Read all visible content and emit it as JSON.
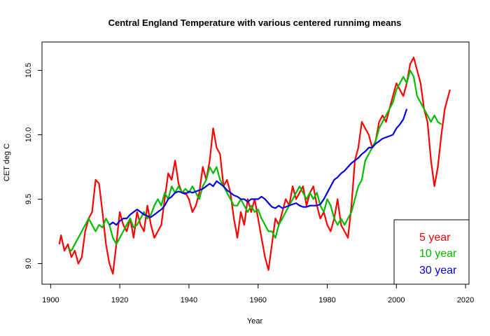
{
  "chart_data": {
    "type": "line",
    "title": "Central England Temperature with various centered runnimg means",
    "xlabel": "Year",
    "ylabel": "CET deg C",
    "xlim": [
      1897.5,
      2021
    ],
    "ylim": [
      8.84,
      10.72
    ],
    "x_ticks": [
      1900,
      1920,
      1940,
      1960,
      1980,
      2000,
      2020
    ],
    "y_ticks": [
      9.0,
      9.5,
      10.0,
      10.5
    ],
    "x_tick_labels": [
      "1900",
      "1920",
      "1940",
      "1960",
      "1980",
      "2000",
      "2020"
    ],
    "y_tick_labels": [
      "9.0",
      "9.5",
      "10.0",
      "10.5"
    ],
    "legend_position": "bottom-right",
    "series": [
      {
        "name": "5 year",
        "color": "#ff0000",
        "x": [
          1902.5,
          1903,
          1904,
          1905,
          1906,
          1907,
          1908,
          1909,
          1910,
          1911,
          1912,
          1913,
          1914,
          1915,
          1916,
          1917,
          1918,
          1919,
          1920,
          1921,
          1922,
          1923,
          1924,
          1925,
          1926,
          1927,
          1928,
          1929,
          1930,
          1931,
          1932,
          1933,
          1934,
          1935,
          1936,
          1937,
          1938,
          1939,
          1940,
          1941,
          1942,
          1943,
          1944,
          1945,
          1946,
          1947,
          1948,
          1949,
          1950,
          1951,
          1952,
          1953,
          1954,
          1955,
          1956,
          1957,
          1958,
          1959,
          1960,
          1961,
          1962,
          1963,
          1964,
          1965,
          1966,
          1967,
          1968,
          1969,
          1970,
          1971,
          1972,
          1973,
          1974,
          1975,
          1976,
          1977,
          1978,
          1979,
          1980,
          1981,
          1982,
          1983,
          1984,
          1985,
          1986,
          1987,
          1988,
          1989,
          1990,
          1991,
          1992,
          1993,
          1994,
          1995,
          1996,
          1997,
          1998,
          1999,
          2000,
          2001,
          2002,
          2003,
          2004,
          2005,
          2006,
          2007,
          2008,
          2009,
          2010,
          2011,
          2012,
          2013,
          2014,
          2015.5
        ],
        "values": [
          9.15,
          9.22,
          9.1,
          9.15,
          9.05,
          9.1,
          9.0,
          9.05,
          9.25,
          9.35,
          9.4,
          9.65,
          9.62,
          9.4,
          9.15,
          9.0,
          8.92,
          9.15,
          9.4,
          9.3,
          9.25,
          9.35,
          9.2,
          9.4,
          9.3,
          9.25,
          9.45,
          9.3,
          9.2,
          9.25,
          9.3,
          9.5,
          9.7,
          9.65,
          9.8,
          9.62,
          9.55,
          9.55,
          9.5,
          9.4,
          9.45,
          9.55,
          9.75,
          9.65,
          9.8,
          10.05,
          9.9,
          9.85,
          9.6,
          9.65,
          9.55,
          9.35,
          9.2,
          9.4,
          9.3,
          9.5,
          9.4,
          9.5,
          9.35,
          9.2,
          9.05,
          8.95,
          9.15,
          9.35,
          9.3,
          9.4,
          9.5,
          9.45,
          9.6,
          9.5,
          9.55,
          9.6,
          9.45,
          9.55,
          9.6,
          9.45,
          9.35,
          9.4,
          9.3,
          9.25,
          9.35,
          9.5,
          9.3,
          9.25,
          9.2,
          9.45,
          9.8,
          9.9,
          10.1,
          10.05,
          10.0,
          9.9,
          9.95,
          10.1,
          10.15,
          10.1,
          10.2,
          10.3,
          10.4,
          10.35,
          10.3,
          10.4,
          10.55,
          10.6,
          10.5,
          10.4,
          10.2,
          10.1,
          9.8,
          9.6,
          9.75,
          10.0,
          10.2,
          10.35
        ]
      },
      {
        "name": "10 year",
        "color": "#00bb00",
        "x": [
          1905,
          1906,
          1907,
          1908,
          1909,
          1910,
          1911,
          1912,
          1913,
          1914,
          1915,
          1916,
          1917,
          1918,
          1919,
          1920,
          1921,
          1922,
          1923,
          1924,
          1925,
          1926,
          1927,
          1928,
          1929,
          1930,
          1931,
          1932,
          1933,
          1934,
          1935,
          1936,
          1937,
          1938,
          1939,
          1940,
          1941,
          1942,
          1943,
          1944,
          1945,
          1946,
          1947,
          1948,
          1949,
          1950,
          1951,
          1952,
          1953,
          1954,
          1955,
          1956,
          1957,
          1958,
          1959,
          1960,
          1961,
          1962,
          1963,
          1964,
          1965,
          1966,
          1967,
          1968,
          1969,
          1970,
          1971,
          1972,
          1973,
          1974,
          1975,
          1976,
          1977,
          1978,
          1979,
          1980,
          1981,
          1982,
          1983,
          1984,
          1985,
          1986,
          1987,
          1988,
          1989,
          1990,
          1991,
          1992,
          1993,
          1994,
          1995,
          1996,
          1997,
          1998,
          1999,
          2000,
          2001,
          2002,
          2003,
          2004,
          2005,
          2006,
          2007,
          2008,
          2009,
          2010,
          2011,
          2012,
          2013
        ],
        "values": [
          9.12,
          9.1,
          9.15,
          9.2,
          9.25,
          9.3,
          9.35,
          9.3,
          9.25,
          9.3,
          9.28,
          9.35,
          9.3,
          9.2,
          9.15,
          9.2,
          9.25,
          9.3,
          9.35,
          9.28,
          9.3,
          9.35,
          9.4,
          9.35,
          9.38,
          9.45,
          9.5,
          9.45,
          9.55,
          9.5,
          9.6,
          9.55,
          9.6,
          9.55,
          9.58,
          9.55,
          9.6,
          9.55,
          9.5,
          9.6,
          9.65,
          9.75,
          9.7,
          9.75,
          9.65,
          9.6,
          9.55,
          9.5,
          9.45,
          9.45,
          9.5,
          9.45,
          9.4,
          9.45,
          9.4,
          9.42,
          9.35,
          9.3,
          9.25,
          9.25,
          9.2,
          9.3,
          9.35,
          9.4,
          9.45,
          9.5,
          9.55,
          9.6,
          9.55,
          9.5,
          9.55,
          9.5,
          9.55,
          9.45,
          9.4,
          9.5,
          9.45,
          9.35,
          9.3,
          9.35,
          9.3,
          9.35,
          9.4,
          9.5,
          9.6,
          9.65,
          9.8,
          9.85,
          9.9,
          9.95,
          10.05,
          10.1,
          10.15,
          10.2,
          10.25,
          10.35,
          10.4,
          10.45,
          10.4,
          10.5,
          10.45,
          10.3,
          10.25,
          10.2,
          10.15,
          10.1,
          10.15,
          10.1,
          10.08
        ]
      },
      {
        "name": "30 year",
        "color": "#0000dd",
        "x": [
          1917,
          1918,
          1919,
          1920,
          1921,
          1922,
          1923,
          1924,
          1925,
          1926,
          1927,
          1928,
          1929,
          1930,
          1931,
          1932,
          1933,
          1934,
          1935,
          1936,
          1937,
          1938,
          1939,
          1940,
          1941,
          1942,
          1943,
          1944,
          1945,
          1946,
          1947,
          1948,
          1949,
          1950,
          1951,
          1952,
          1953,
          1954,
          1955,
          1956,
          1957,
          1958,
          1959,
          1960,
          1961,
          1962,
          1963,
          1964,
          1965,
          1966,
          1967,
          1968,
          1969,
          1970,
          1971,
          1972,
          1973,
          1974,
          1975,
          1976,
          1977,
          1978,
          1979,
          1980,
          1981,
          1982,
          1983,
          1984,
          1985,
          1986,
          1987,
          1988,
          1989,
          1990,
          1991,
          1992,
          1993,
          1994,
          1995,
          1996,
          1997,
          1998,
          1999,
          2000,
          2001,
          2002,
          2003
        ],
        "values": [
          9.3,
          9.32,
          9.3,
          9.33,
          9.35,
          9.35,
          9.38,
          9.4,
          9.42,
          9.4,
          9.38,
          9.37,
          9.36,
          9.38,
          9.4,
          9.42,
          9.45,
          9.5,
          9.52,
          9.55,
          9.56,
          9.55,
          9.54,
          9.56,
          9.55,
          9.56,
          9.57,
          9.58,
          9.6,
          9.62,
          9.6,
          9.64,
          9.62,
          9.6,
          9.57,
          9.55,
          9.53,
          9.52,
          9.5,
          9.5,
          9.48,
          9.5,
          9.5,
          9.5,
          9.52,
          9.5,
          9.47,
          9.44,
          9.43,
          9.45,
          9.43,
          9.44,
          9.45,
          9.46,
          9.47,
          9.45,
          9.44,
          9.44,
          9.45,
          9.45,
          9.45,
          9.46,
          9.5,
          9.55,
          9.6,
          9.65,
          9.67,
          9.7,
          9.72,
          9.75,
          9.78,
          9.8,
          9.82,
          9.85,
          9.87,
          9.9,
          9.9,
          9.93,
          9.95,
          9.97,
          9.98,
          9.99,
          10.0,
          10.05,
          10.08,
          10.12,
          10.2
        ]
      }
    ]
  }
}
